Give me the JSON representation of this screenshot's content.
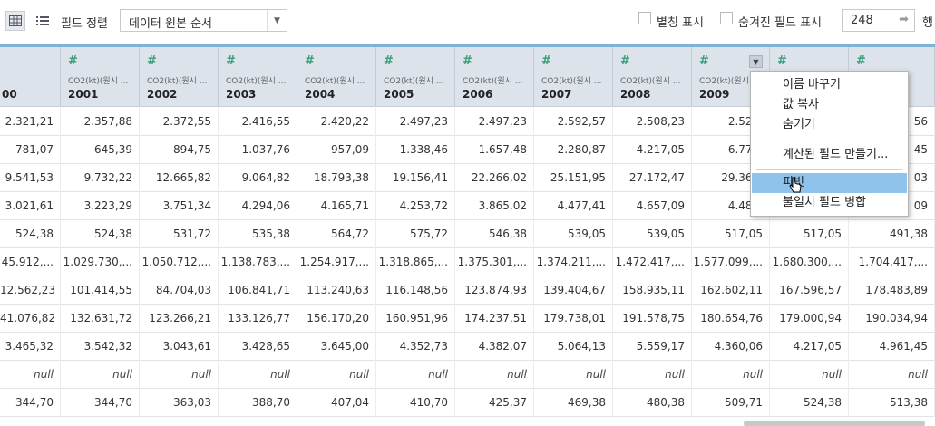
{
  "toolbar": {
    "sort_label": "필드 정렬",
    "sort_value": "데이터 원본 순서",
    "alias_label": "별칭 표시",
    "hidden_fields_label": "숨겨진 필드 표시",
    "rows_value": "248",
    "rows_unit": "행"
  },
  "columns": [
    {
      "src": "",
      "name": "00"
    },
    {
      "src": "CO2(kt)(원시 ...",
      "name": "2001"
    },
    {
      "src": "CO2(kt)(원시 ...",
      "name": "2002"
    },
    {
      "src": "CO2(kt)(원시 ...",
      "name": "2003"
    },
    {
      "src": "CO2(kt)(원시 ...",
      "name": "2004"
    },
    {
      "src": "CO2(kt)(원시 ...",
      "name": "2005"
    },
    {
      "src": "CO2(kt)(원시 ...",
      "name": "2006"
    },
    {
      "src": "CO2(kt)(원시 ...",
      "name": "2007"
    },
    {
      "src": "CO2(kt)(원시 ...",
      "name": "2008"
    },
    {
      "src": "CO2(kt)(원시 ...",
      "name": "2009"
    },
    {
      "src": "",
      "name": ""
    },
    {
      "src": "",
      "name": ""
    }
  ],
  "rows": [
    [
      "2.321,21",
      "2.357,88",
      "2.372,55",
      "2.416,55",
      "2.420,22",
      "2.497,23",
      "2.497,23",
      "2.592,57",
      "2.508,23",
      "2.522,",
      "",
      "56"
    ],
    [
      "781,07",
      "645,39",
      "894,75",
      "1.037,76",
      "957,09",
      "1.338,46",
      "1.657,48",
      "2.280,87",
      "4.217,05",
      "6.776,",
      "",
      "45"
    ],
    [
      "9.541,53",
      "9.732,22",
      "12.665,82",
      "9.064,82",
      "18.793,38",
      "19.156,41",
      "22.266,02",
      "25.151,95",
      "27.172,47",
      "29.361,",
      "",
      "03"
    ],
    [
      "3.021,61",
      "3.223,29",
      "3.751,34",
      "4.294,06",
      "4.165,71",
      "4.253,72",
      "3.865,02",
      "4.477,41",
      "4.657,09",
      "4.488,",
      "",
      "09"
    ],
    [
      "524,38",
      "524,38",
      "531,72",
      "535,38",
      "564,72",
      "575,72",
      "546,38",
      "539,05",
      "539,05",
      "517,05",
      "517,05",
      "491,38"
    ],
    [
      "45.912,...",
      "1.029.730,...",
      "1.050.712,...",
      "1.138.783,...",
      "1.254.917,...",
      "1.318.865,...",
      "1.375.301,...",
      "1.374.211,...",
      "1.472.417,...",
      "1.577.099,...",
      "1.680.300,...",
      "1.704.417,..."
    ],
    [
      "12.562,23",
      "101.414,55",
      "84.704,03",
      "106.841,71",
      "113.240,63",
      "116.148,56",
      "123.874,93",
      "139.404,67",
      "158.935,11",
      "162.602,11",
      "167.596,57",
      "178.483,89"
    ],
    [
      "41.076,82",
      "132.631,72",
      "123.266,21",
      "133.126,77",
      "156.170,20",
      "160.951,96",
      "174.237,51",
      "179.738,01",
      "191.578,75",
      "180.654,76",
      "179.000,94",
      "190.034,94"
    ],
    [
      "3.465,32",
      "3.542,32",
      "3.043,61",
      "3.428,65",
      "3.645,00",
      "4.352,73",
      "4.382,07",
      "5.064,13",
      "5.559,17",
      "4.360,06",
      "4.217,05",
      "4.961,45"
    ],
    [
      "null",
      "null",
      "null",
      "null",
      "null",
      "null",
      "null",
      "null",
      "null",
      "null",
      "null",
      "null"
    ],
    [
      "344,70",
      "344,70",
      "363,03",
      "388,70",
      "407,04",
      "410,70",
      "425,37",
      "469,38",
      "480,38",
      "509,71",
      "524,38",
      "513,38"
    ]
  ],
  "context_menu": {
    "rename": "이름 바꾸기",
    "copy_values": "값 복사",
    "hide": "숨기기",
    "create_calc": "계산된 필드 만들기...",
    "pivot": "피벗",
    "merge_mismatched": "불일치 필드 병합"
  }
}
